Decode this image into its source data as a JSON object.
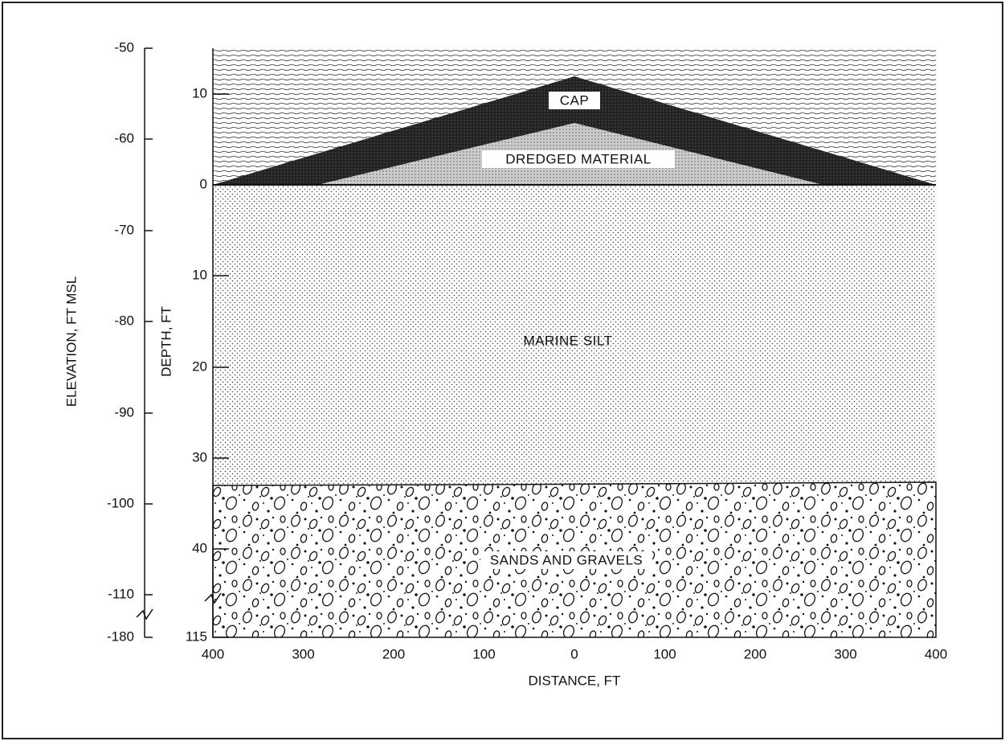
{
  "axes": {
    "elevation": {
      "title": "ELEVATION, FT MSL",
      "ticks": [
        "-50",
        "-60",
        "-70",
        "-80",
        "-90",
        "-100",
        "-110",
        "-180"
      ]
    },
    "depth": {
      "title": "DEPTH, FT",
      "ticks": [
        "10",
        "0",
        "10",
        "20",
        "30",
        "40",
        "115"
      ]
    },
    "distance": {
      "title": "DISTANCE, FT",
      "ticks": [
        "400",
        "300",
        "200",
        "100",
        "0",
        "100",
        "200",
        "300",
        "400"
      ]
    }
  },
  "layers": {
    "cap": "CAP",
    "dredged": "DREDGED MATERIAL",
    "silt": "MARINE SILT",
    "gravels": "SANDS AND GRAVELS"
  }
}
